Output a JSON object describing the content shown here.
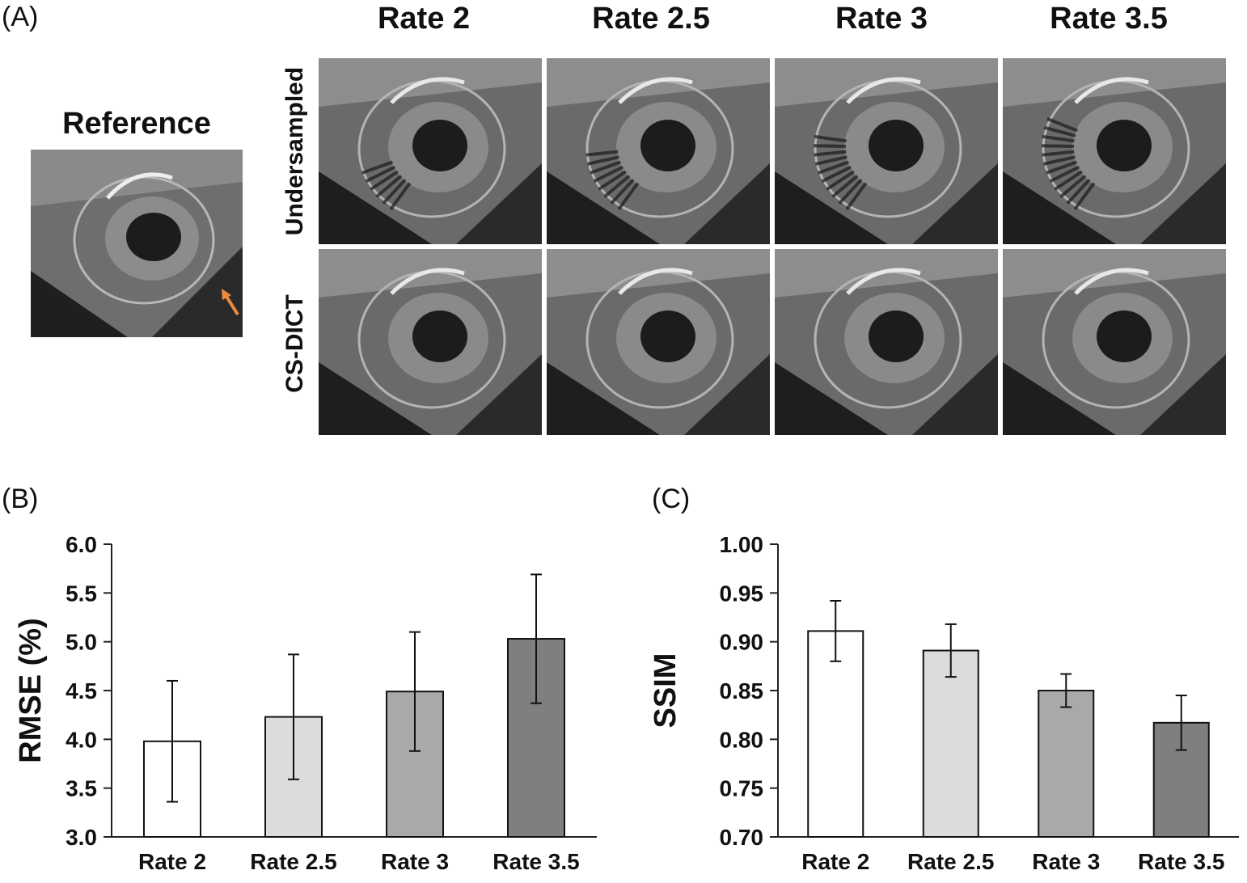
{
  "panels": {
    "a": "(A)",
    "b": "(B)",
    "c": "(C)"
  },
  "reference": {
    "title": "Reference"
  },
  "columns": [
    "Rate 2",
    "Rate 2.5",
    "Rate 3",
    "Rate 3.5"
  ],
  "rows": [
    "Undersampled",
    "CS-DICT"
  ],
  "colors": {
    "arrow": "#ee8a3a",
    "axis": "#222222"
  },
  "chart_data": [
    {
      "type": "bar",
      "categories": [
        "Rate 2",
        "Rate 2.5",
        "Rate 3",
        "Rate 3.5"
      ],
      "values": [
        3.98,
        4.23,
        4.49,
        5.03
      ],
      "errors": [
        0.62,
        0.64,
        0.61,
        0.66
      ],
      "bar_colors": [
        "#ffffff",
        "#dcdcdc",
        "#a9a9a9",
        "#7f7f7f"
      ],
      "ylabel": "RMSE (%)",
      "xlabel": "",
      "ylim": [
        3.0,
        6.0
      ],
      "yticks": [
        "3.0",
        "3.5",
        "4.0",
        "4.5",
        "5.0",
        "5.5",
        "6.0"
      ],
      "grid": false
    },
    {
      "type": "bar",
      "categories": [
        "Rate 2",
        "Rate 2.5",
        "Rate 3",
        "Rate 3.5"
      ],
      "values": [
        0.911,
        0.891,
        0.85,
        0.817
      ],
      "errors": [
        0.031,
        0.027,
        0.017,
        0.028
      ],
      "bar_colors": [
        "#ffffff",
        "#dcdcdc",
        "#a9a9a9",
        "#7f7f7f"
      ],
      "ylabel": "SSIM",
      "xlabel": "",
      "ylim": [
        0.7,
        1.0
      ],
      "yticks": [
        "0.70",
        "0.75",
        "0.80",
        "0.85",
        "0.90",
        "0.95",
        "1.00"
      ],
      "grid": false
    }
  ]
}
